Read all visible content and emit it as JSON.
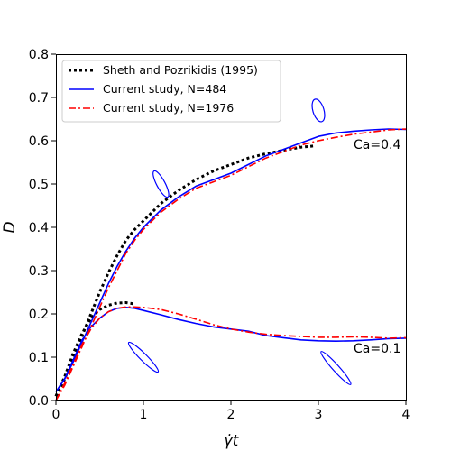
{
  "chart_data": {
    "type": "line",
    "xlabel": "γ̇t",
    "ylabel": "D",
    "xlim": [
      0,
      4
    ],
    "ylim": [
      0,
      0.8
    ],
    "xticks": [
      "0",
      "1",
      "2",
      "3",
      "4"
    ],
    "yticks": [
      "0.0",
      "0.1",
      "0.2",
      "0.3",
      "0.4",
      "0.5",
      "0.6",
      "0.7",
      "0.8"
    ],
    "grid": false,
    "legend_position": "top-left",
    "legend": [
      {
        "label": "Sheth and Pozrikidis (1995)",
        "color": "#000000",
        "style": "dotted"
      },
      {
        "label": "Current study, N=484",
        "color": "#0000ff",
        "style": "solid"
      },
      {
        "label": "Current study, N=1976",
        "color": "#ff0000",
        "style": "dashdot"
      }
    ],
    "annotations": [
      {
        "text": "Ca=0.4",
        "x": 3.56,
        "y": 0.58
      },
      {
        "text": "Ca=0.1",
        "x": 3.56,
        "y": 0.115
      }
    ],
    "series": [
      {
        "name": "Sheth and Pozrikidis (1995)",
        "ca": "0.4",
        "color": "#000000",
        "style": "dotted",
        "x": [
          0,
          0.1,
          0.2,
          0.3,
          0.4,
          0.5,
          0.6,
          0.7,
          0.8,
          0.9,
          1.0,
          1.2,
          1.4,
          1.6,
          1.8,
          2.0,
          2.2,
          2.4,
          2.6,
          2.8,
          2.95
        ],
        "y": [
          0.01,
          0.05,
          0.1,
          0.15,
          0.2,
          0.25,
          0.295,
          0.335,
          0.37,
          0.395,
          0.415,
          0.455,
          0.485,
          0.51,
          0.53,
          0.545,
          0.56,
          0.57,
          0.578,
          0.585,
          0.588
        ]
      },
      {
        "name": "Sheth and Pozrikidis (1995)",
        "ca": "0.1",
        "color": "#000000",
        "style": "dotted",
        "x": [
          0,
          0.1,
          0.2,
          0.3,
          0.4,
          0.5,
          0.6,
          0.7,
          0.8,
          0.9
        ],
        "y": [
          0.01,
          0.055,
          0.11,
          0.155,
          0.19,
          0.21,
          0.22,
          0.225,
          0.226,
          0.223
        ]
      },
      {
        "name": "Current study, N=484",
        "ca": "0.4",
        "color": "#0000ff",
        "style": "solid",
        "x": [
          0,
          0.1,
          0.2,
          0.3,
          0.4,
          0.5,
          0.6,
          0.7,
          0.8,
          0.9,
          1.0,
          1.2,
          1.4,
          1.6,
          1.8,
          2.0,
          2.2,
          2.4,
          2.6,
          2.8,
          3.0,
          3.2,
          3.4,
          3.6,
          3.8,
          4.0
        ],
        "y": [
          0.02,
          0.05,
          0.09,
          0.135,
          0.18,
          0.225,
          0.27,
          0.31,
          0.345,
          0.375,
          0.4,
          0.44,
          0.47,
          0.495,
          0.51,
          0.525,
          0.545,
          0.565,
          0.58,
          0.595,
          0.61,
          0.618,
          0.622,
          0.625,
          0.627,
          0.626
        ]
      },
      {
        "name": "Current study, N=484",
        "ca": "0.1",
        "color": "#0000ff",
        "style": "solid",
        "x": [
          0,
          0.1,
          0.2,
          0.3,
          0.4,
          0.5,
          0.6,
          0.7,
          0.8,
          0.9,
          1.0,
          1.2,
          1.4,
          1.6,
          1.8,
          2.0,
          2.2,
          2.4,
          2.6,
          2.8,
          3.0,
          3.2,
          3.4,
          3.6,
          3.8,
          4.0
        ],
        "y": [
          0.02,
          0.05,
          0.095,
          0.14,
          0.17,
          0.19,
          0.205,
          0.213,
          0.215,
          0.213,
          0.208,
          0.198,
          0.187,
          0.178,
          0.17,
          0.165,
          0.16,
          0.15,
          0.145,
          0.14,
          0.138,
          0.137,
          0.138,
          0.14,
          0.143,
          0.144
        ]
      },
      {
        "name": "Current study, N=1976",
        "ca": "0.4",
        "color": "#ff0000",
        "style": "dashdot",
        "x": [
          0,
          0.1,
          0.2,
          0.3,
          0.4,
          0.5,
          0.6,
          0.7,
          0.8,
          0.9,
          1.0,
          1.2,
          1.4,
          1.6,
          1.8,
          2.0,
          2.2,
          2.4,
          2.6,
          2.8,
          3.0,
          3.2,
          3.4,
          3.6,
          3.8,
          4.0
        ],
        "y": [
          0.0,
          0.035,
          0.08,
          0.125,
          0.17,
          0.215,
          0.26,
          0.3,
          0.34,
          0.37,
          0.395,
          0.435,
          0.465,
          0.49,
          0.505,
          0.52,
          0.54,
          0.56,
          0.575,
          0.59,
          0.6,
          0.608,
          0.615,
          0.62,
          0.625,
          0.627
        ]
      },
      {
        "name": "Current study, N=1976",
        "ca": "0.1",
        "color": "#ff0000",
        "style": "dashdot",
        "x": [
          0,
          0.1,
          0.2,
          0.3,
          0.4,
          0.5,
          0.6,
          0.7,
          0.8,
          0.9,
          1.0,
          1.2,
          1.4,
          1.6,
          1.8,
          2.0,
          2.2,
          2.4,
          2.6,
          2.8,
          3.0,
          3.2,
          3.4,
          3.6,
          3.8,
          4.0
        ],
        "y": [
          0.0,
          0.04,
          0.085,
          0.13,
          0.165,
          0.19,
          0.205,
          0.213,
          0.216,
          0.216,
          0.215,
          0.21,
          0.2,
          0.188,
          0.175,
          0.165,
          0.158,
          0.153,
          0.15,
          0.148,
          0.146,
          0.146,
          0.147,
          0.146,
          0.144,
          0.145
        ]
      }
    ],
    "inset_shapes": [
      {
        "name": "droplet-shape-ca04-t1",
        "cx": 1.2,
        "cy": 0.5,
        "rx": 0.48,
        "ry": 0.034,
        "rot": -28
      },
      {
        "name": "droplet-shape-ca04-t3",
        "cx": 3.0,
        "cy": 0.67,
        "rx": 0.63,
        "ry": 0.027,
        "rot": -17
      },
      {
        "name": "droplet-shape-ca01-t1",
        "cx": 1.0,
        "cy": 0.1,
        "rx": 0.4,
        "ry": 0.048,
        "rot": -45
      },
      {
        "name": "droplet-shape-ca01-t3",
        "cx": 3.2,
        "cy": 0.075,
        "rx": 0.37,
        "ry": 0.051,
        "rot": -42
      }
    ]
  }
}
